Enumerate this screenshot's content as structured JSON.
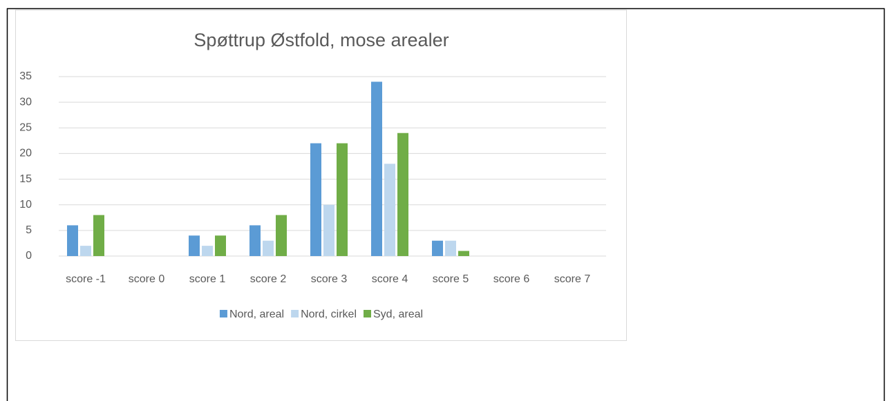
{
  "chart_data": {
    "type": "bar",
    "title": "Spøttrup Østfold, mose arealer",
    "categories": [
      "score -1",
      "score 0",
      "score 1",
      "score 2",
      "score 3",
      "score 4",
      "score 5",
      "score 6",
      "score 7"
    ],
    "series": [
      {
        "name": "Nord, areal",
        "color": "#5b9bd5",
        "values": [
          6,
          0,
          4,
          6,
          22,
          34,
          3,
          0,
          0
        ]
      },
      {
        "name": "Nord, cirkel",
        "color": "#bdd7ee",
        "values": [
          2,
          0,
          2,
          3,
          10,
          18,
          3,
          0,
          0
        ]
      },
      {
        "name": "Syd, areal",
        "color": "#70ad47",
        "values": [
          8,
          0,
          4,
          8,
          22,
          24,
          1,
          0,
          0
        ]
      }
    ],
    "ylim": [
      0,
      35
    ],
    "yticks": [
      0,
      5,
      10,
      15,
      20,
      25,
      30,
      35
    ],
    "grid": true,
    "legend": "bottom"
  }
}
